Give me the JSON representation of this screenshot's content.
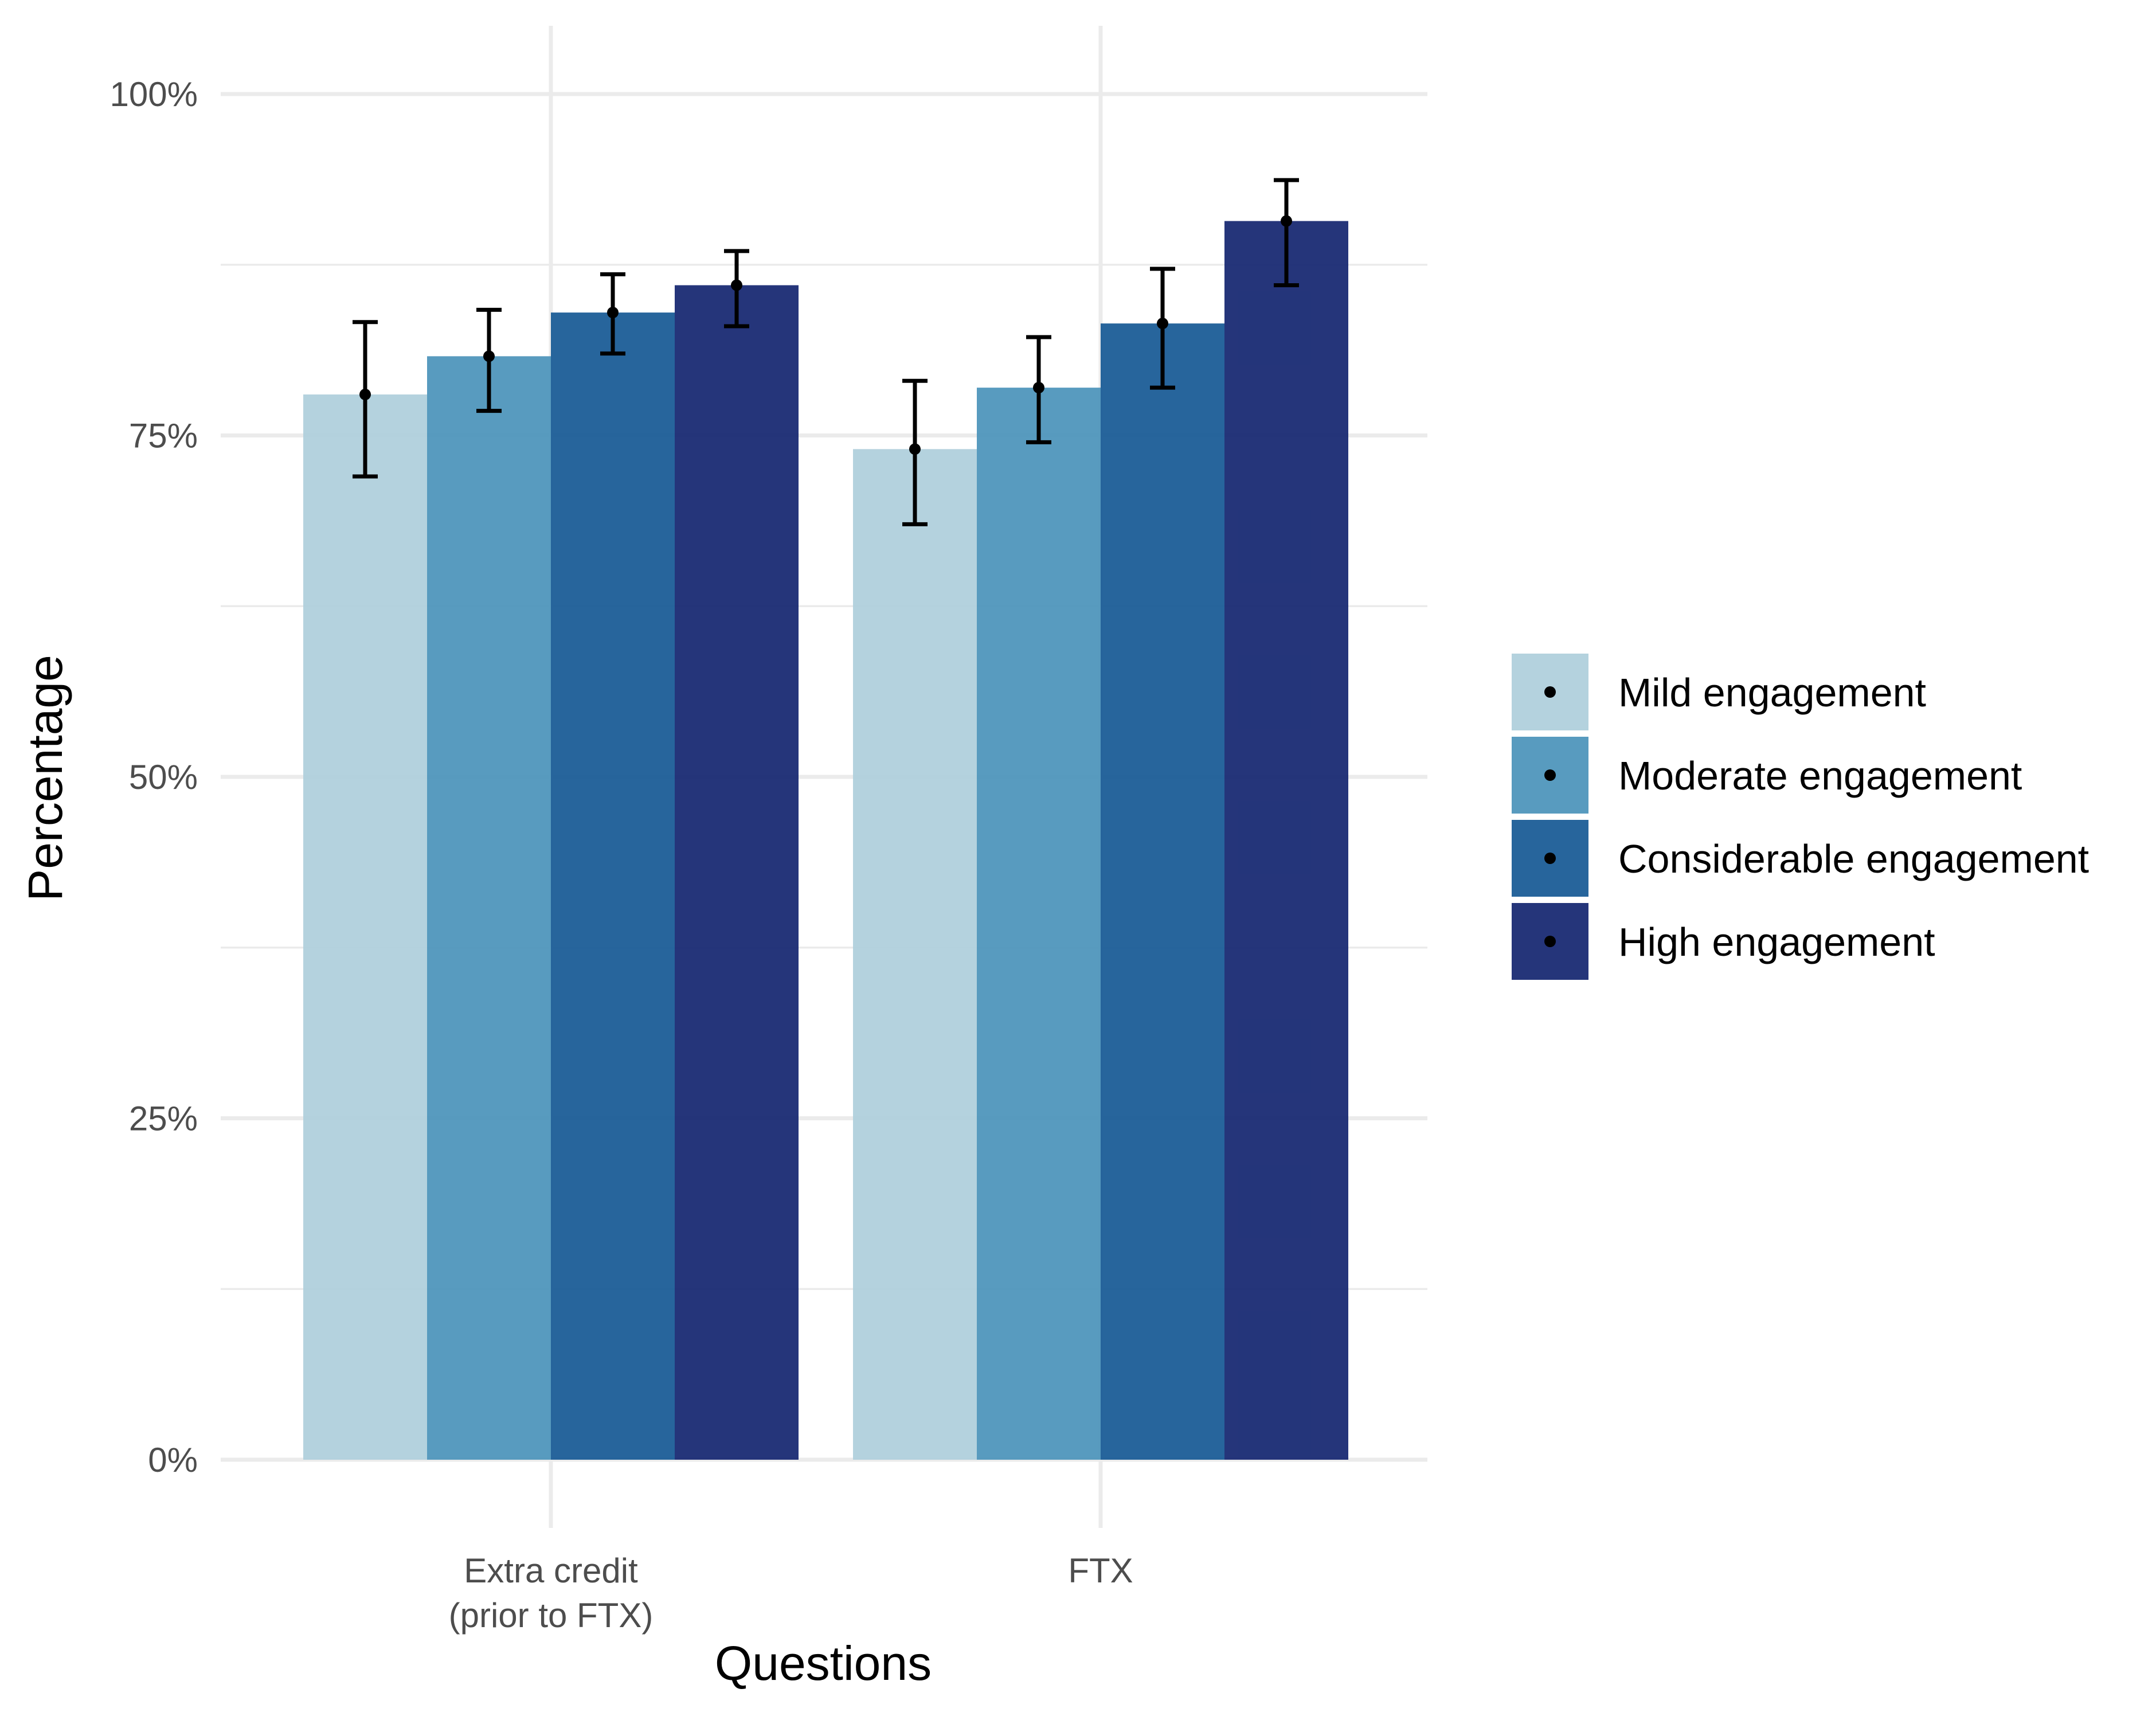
{
  "chart_data": {
    "type": "bar",
    "title": "",
    "xlabel": "Questions",
    "ylabel": "Percentage",
    "ylim": [
      0,
      1.05
    ],
    "y_ticks": [
      0,
      0.25,
      0.5,
      0.75,
      1.0
    ],
    "y_tick_labels": [
      "0%",
      "25%",
      "50%",
      "75%",
      "100%"
    ],
    "categories": [
      "Extra credit\n(prior to FTX)",
      "FTX"
    ],
    "grid": true,
    "legend_position": "right",
    "series": [
      {
        "name": "Mild engagement",
        "color": "#aecfdc",
        "values": [
          0.78,
          0.74
        ],
        "ci_low": [
          0.72,
          0.685
        ],
        "ci_high": [
          0.833,
          0.79
        ]
      },
      {
        "name": "Moderate engagement",
        "color": "#4b93ba",
        "values": [
          0.808,
          0.785
        ],
        "ci_low": [
          0.768,
          0.745
        ],
        "ci_high": [
          0.842,
          0.822
        ]
      },
      {
        "name": "Considerable engagement",
        "color": "#175995",
        "values": [
          0.84,
          0.832
        ],
        "ci_low": [
          0.81,
          0.785
        ],
        "ci_high": [
          0.868,
          0.872
        ]
      },
      {
        "name": "High engagement",
        "color": "#142670",
        "values": [
          0.86,
          0.907
        ],
        "ci_low": [
          0.83,
          0.86
        ],
        "ci_high": [
          0.885,
          0.937
        ]
      }
    ]
  }
}
